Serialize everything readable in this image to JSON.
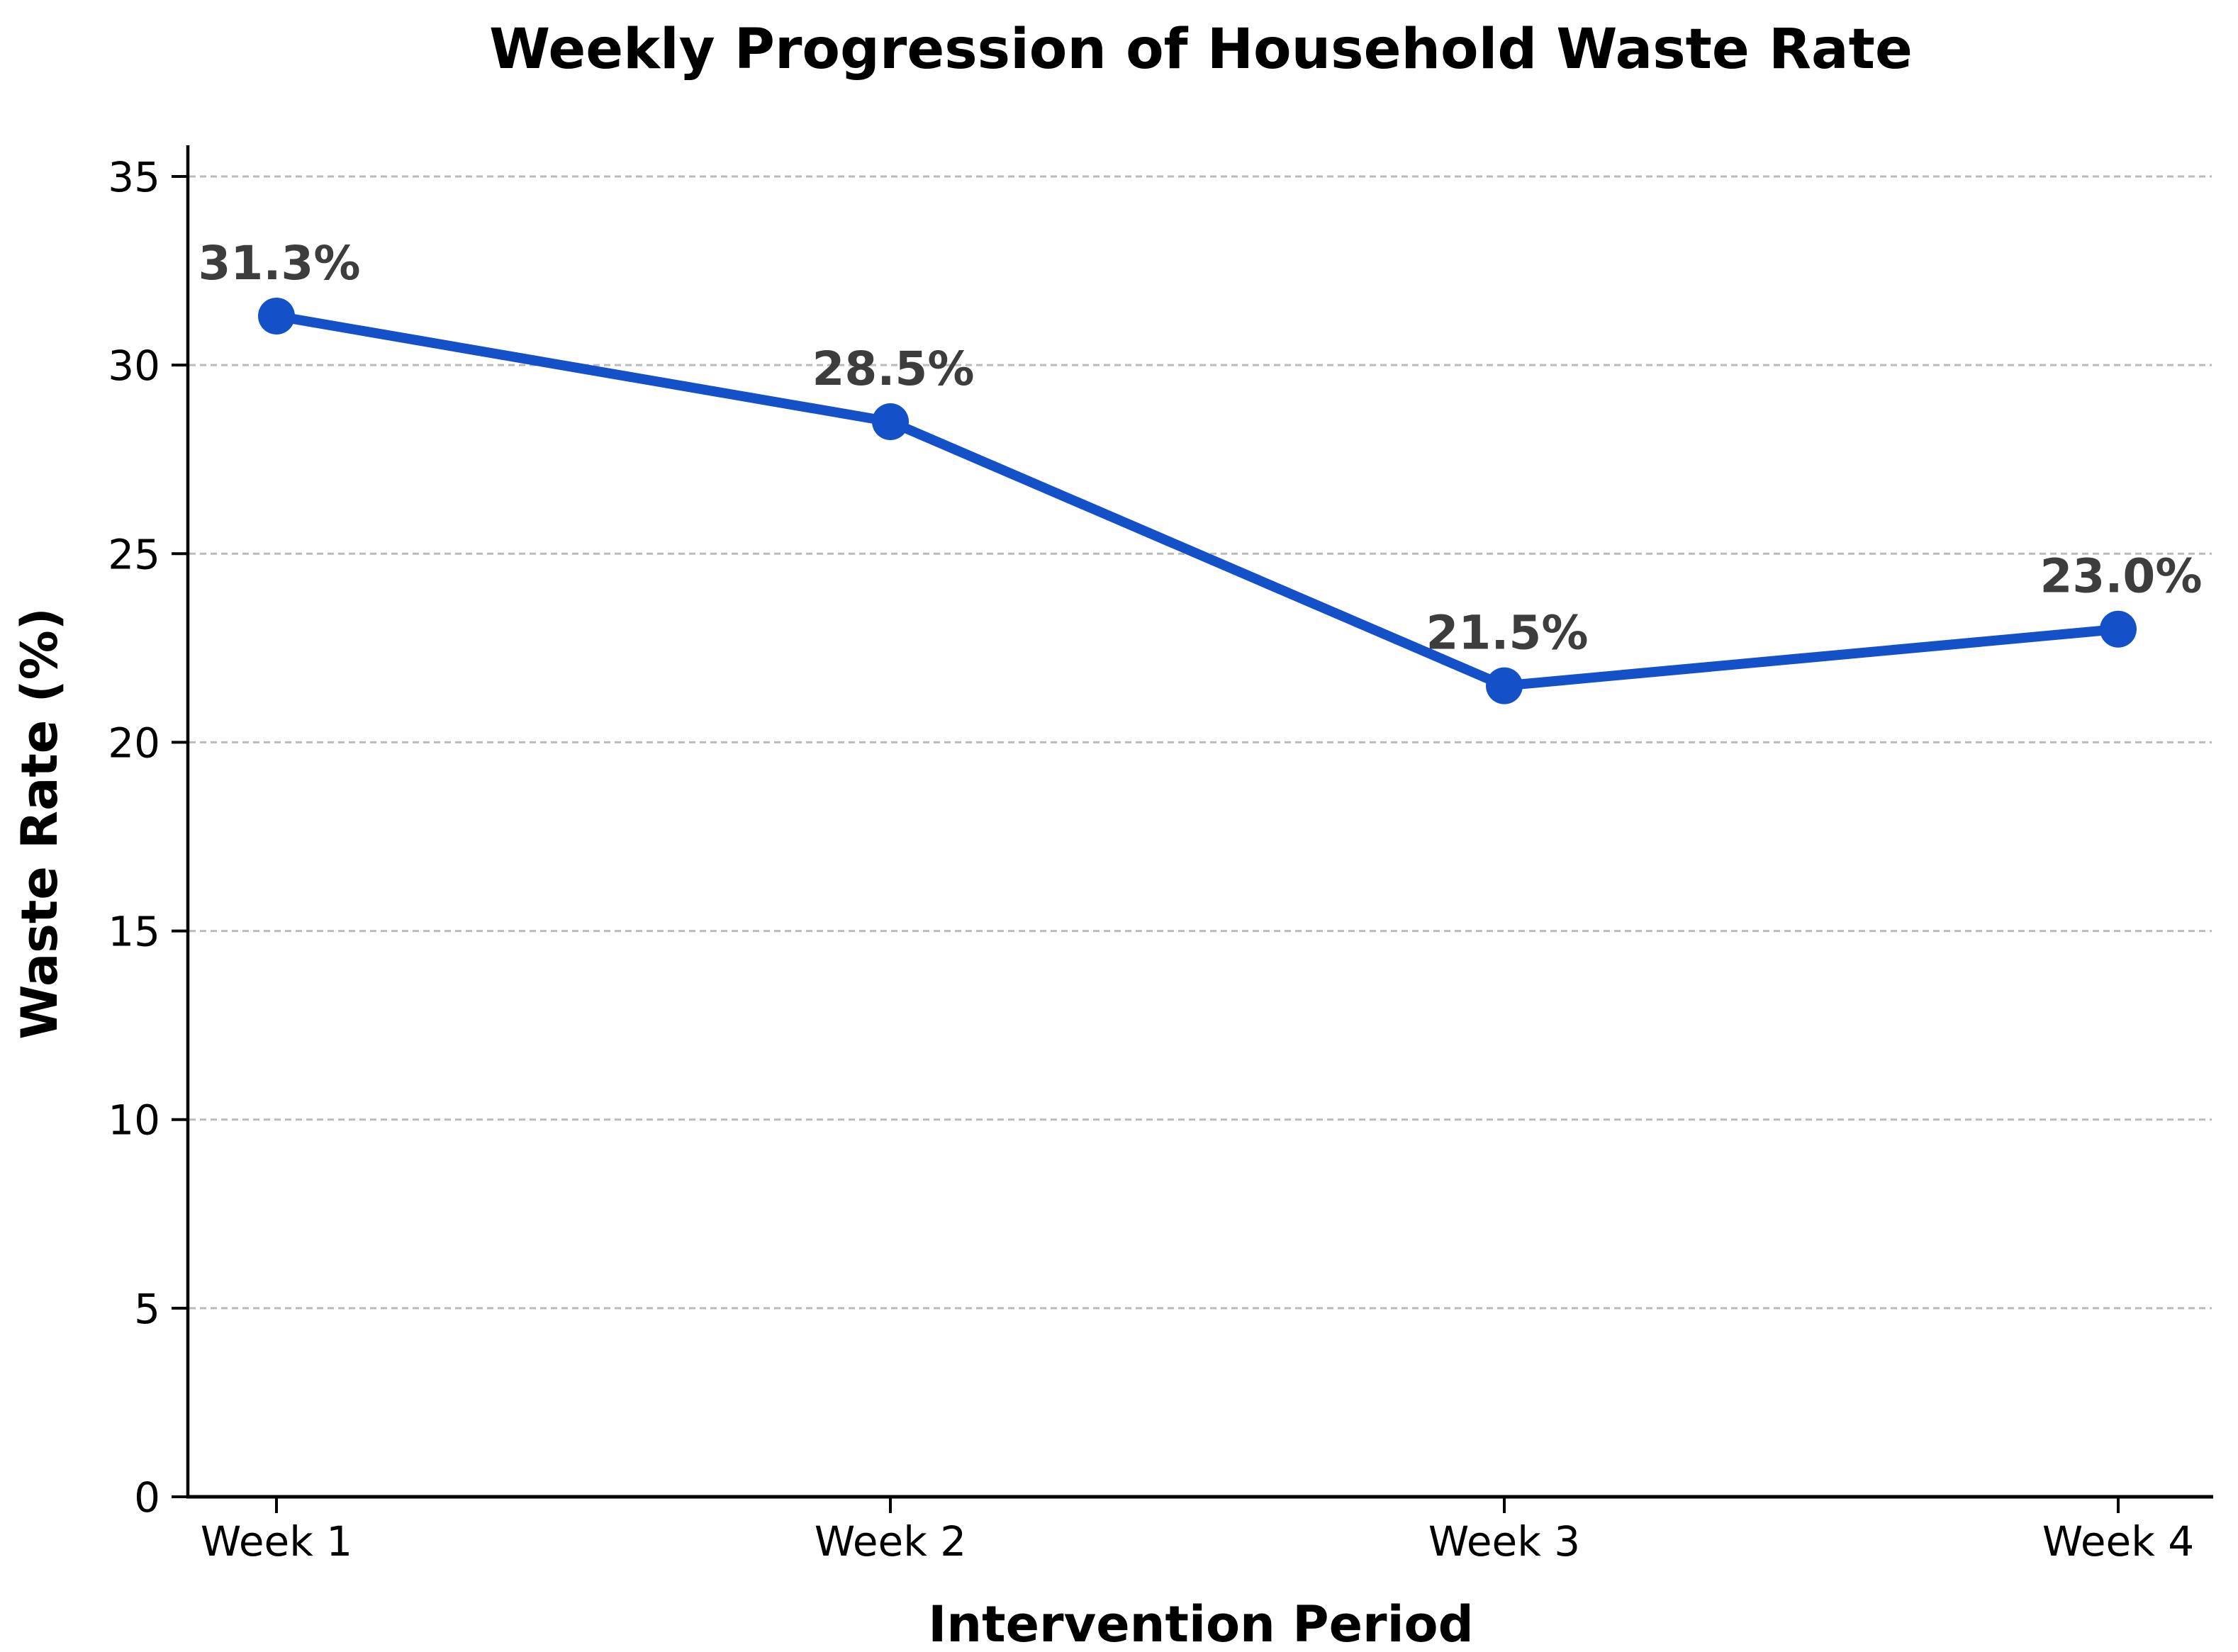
{
  "chart_data": {
    "type": "line",
    "title": "Weekly Progression of Household Waste Rate",
    "xlabel": "Intervention Period",
    "ylabel": "Waste Rate (%)",
    "categories": [
      "Week 1",
      "Week 2",
      "Week 3",
      "Week 4"
    ],
    "series": [
      {
        "name": "Waste Rate",
        "values": [
          31.3,
          28.5,
          21.5,
          23.0
        ],
        "data_labels": [
          "31.3%",
          "28.5%",
          "21.5%",
          "23.0%"
        ]
      }
    ],
    "yticks": [
      0,
      5,
      10,
      15,
      20,
      25,
      30,
      35
    ],
    "ylim": [
      0,
      35
    ],
    "grid": "horizontal, dashed, at every y tick (5 through 35)",
    "legend": "none",
    "marker": "filled circle",
    "colors": {
      "line": "#1450c8",
      "marker": "#1450c8",
      "data_label": "#3d3d3d",
      "grid": "#bbbbbb",
      "axis": "#000000",
      "tick_label": "#000000",
      "background": "#ffffff"
    }
  }
}
